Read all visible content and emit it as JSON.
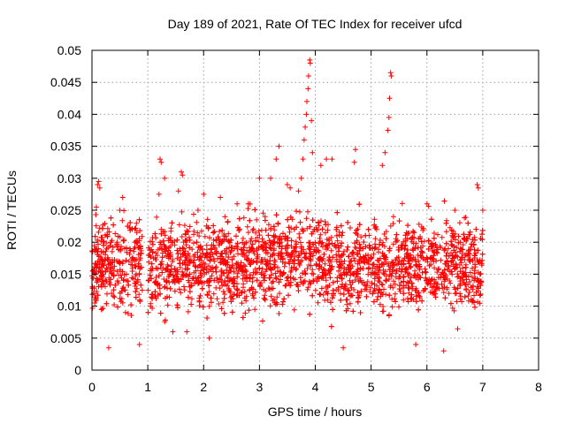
{
  "chart_data": {
    "type": "scatter",
    "title": "Day 189 of 2021, Rate Of TEC Index for receiver ufcd",
    "xlabel": "GPS time / hours",
    "ylabel": "ROTI / TECUs",
    "xlim": [
      0,
      8
    ],
    "ylim": [
      0,
      0.05
    ],
    "xticks": [
      "0",
      "1",
      "2",
      "3",
      "4",
      "5",
      "6",
      "7",
      "8"
    ],
    "yticks": [
      "0",
      "0.005",
      "0.01",
      "0.015",
      "0.02",
      "0.025",
      "0.03",
      "0.035",
      "0.04",
      "0.045",
      "0.05"
    ],
    "grid": true,
    "marker": "+",
    "color": "#ff0000",
    "data_coverage": {
      "start_hour": 0.0,
      "end_hour": 7.0,
      "gap_start_hour": 0.9,
      "gap_end_hour": 1.0
    },
    "typical_range": [
      0.005,
      0.025
    ],
    "series": [
      {
        "name": "ROTI",
        "points": [
          [
            0.05,
            0.0105
          ],
          [
            0.08,
            0.0255
          ],
          [
            0.1,
            0.029
          ],
          [
            0.12,
            0.0295
          ],
          [
            0.14,
            0.0285
          ],
          [
            0.2,
            0.015
          ],
          [
            0.3,
            0.0035
          ],
          [
            0.35,
            0.012
          ],
          [
            0.45,
            0.02
          ],
          [
            0.5,
            0.025
          ],
          [
            0.55,
            0.027
          ],
          [
            0.6,
            0.009
          ],
          [
            0.85,
            0.004
          ],
          [
            1.05,
            0.01
          ],
          [
            1.2,
            0.0275
          ],
          [
            1.22,
            0.033
          ],
          [
            1.24,
            0.0325
          ],
          [
            1.3,
            0.03
          ],
          [
            1.45,
            0.006
          ],
          [
            1.55,
            0.028
          ],
          [
            1.6,
            0.031
          ],
          [
            1.62,
            0.0305
          ],
          [
            1.7,
            0.006
          ],
          [
            1.9,
            0.025
          ],
          [
            2.0,
            0.0275
          ],
          [
            2.1,
            0.005
          ],
          [
            2.3,
            0.027
          ],
          [
            2.6,
            0.026
          ],
          [
            2.8,
            0.026
          ],
          [
            3.0,
            0.03
          ],
          [
            3.1,
            0.024
          ],
          [
            3.2,
            0.03
          ],
          [
            3.3,
            0.033
          ],
          [
            3.35,
            0.035
          ],
          [
            3.5,
            0.029
          ],
          [
            3.55,
            0.0285
          ],
          [
            3.7,
            0.028
          ],
          [
            3.75,
            0.03
          ],
          [
            3.78,
            0.033
          ],
          [
            3.8,
            0.036
          ],
          [
            3.82,
            0.038
          ],
          [
            3.84,
            0.04
          ],
          [
            3.85,
            0.042
          ],
          [
            3.87,
            0.044
          ],
          [
            3.88,
            0.046
          ],
          [
            3.9,
            0.0485
          ],
          [
            3.91,
            0.048
          ],
          [
            3.93,
            0.039
          ],
          [
            3.95,
            0.034
          ],
          [
            4.1,
            0.032
          ],
          [
            4.2,
            0.033
          ],
          [
            4.3,
            0.033
          ],
          [
            4.5,
            0.0035
          ],
          [
            4.7,
            0.0325
          ],
          [
            4.72,
            0.0345
          ],
          [
            5.1,
            0.022
          ],
          [
            5.2,
            0.032
          ],
          [
            5.25,
            0.034
          ],
          [
            5.3,
            0.0375
          ],
          [
            5.32,
            0.0395
          ],
          [
            5.33,
            0.0425
          ],
          [
            5.35,
            0.0465
          ],
          [
            5.36,
            0.046
          ],
          [
            5.4,
            0.024
          ],
          [
            5.8,
            0.004
          ],
          [
            6.0,
            0.026
          ],
          [
            6.3,
            0.003
          ],
          [
            6.5,
            0.025
          ],
          [
            6.6,
            0.02
          ],
          [
            6.7,
            0.018
          ],
          [
            6.9,
            0.029
          ],
          [
            6.92,
            0.0285
          ],
          [
            6.95,
            0.015
          ],
          [
            7.0,
            0.025
          ]
        ]
      }
    ]
  }
}
